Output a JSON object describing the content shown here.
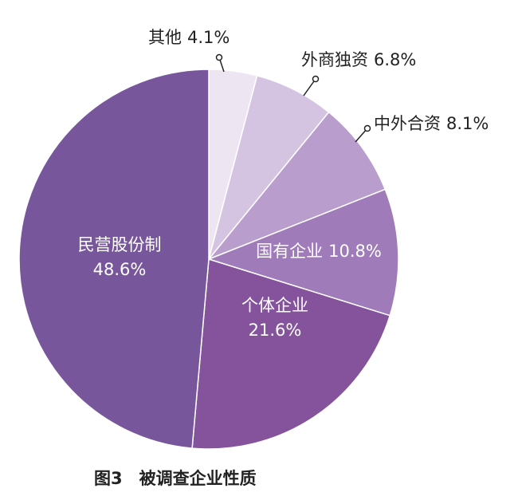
{
  "chart_data": {
    "type": "pie",
    "title": "图3　被调查企业性质",
    "categories": [
      "其他",
      "外商独资",
      "中外合资",
      "国有企业",
      "个体企业",
      "民营股份制"
    ],
    "values": [
      4.1,
      6.8,
      8.1,
      10.8,
      21.6,
      48.6
    ],
    "value_labels": [
      "4.1%",
      "6.8%",
      "8.1%",
      "10.8%",
      "21.6%",
      "48.6%"
    ],
    "colors": [
      "#eee5f2",
      "#d5c4e1",
      "#b99dcc",
      "#9f7bb9",
      "#84539c",
      "#78569c"
    ]
  }
}
